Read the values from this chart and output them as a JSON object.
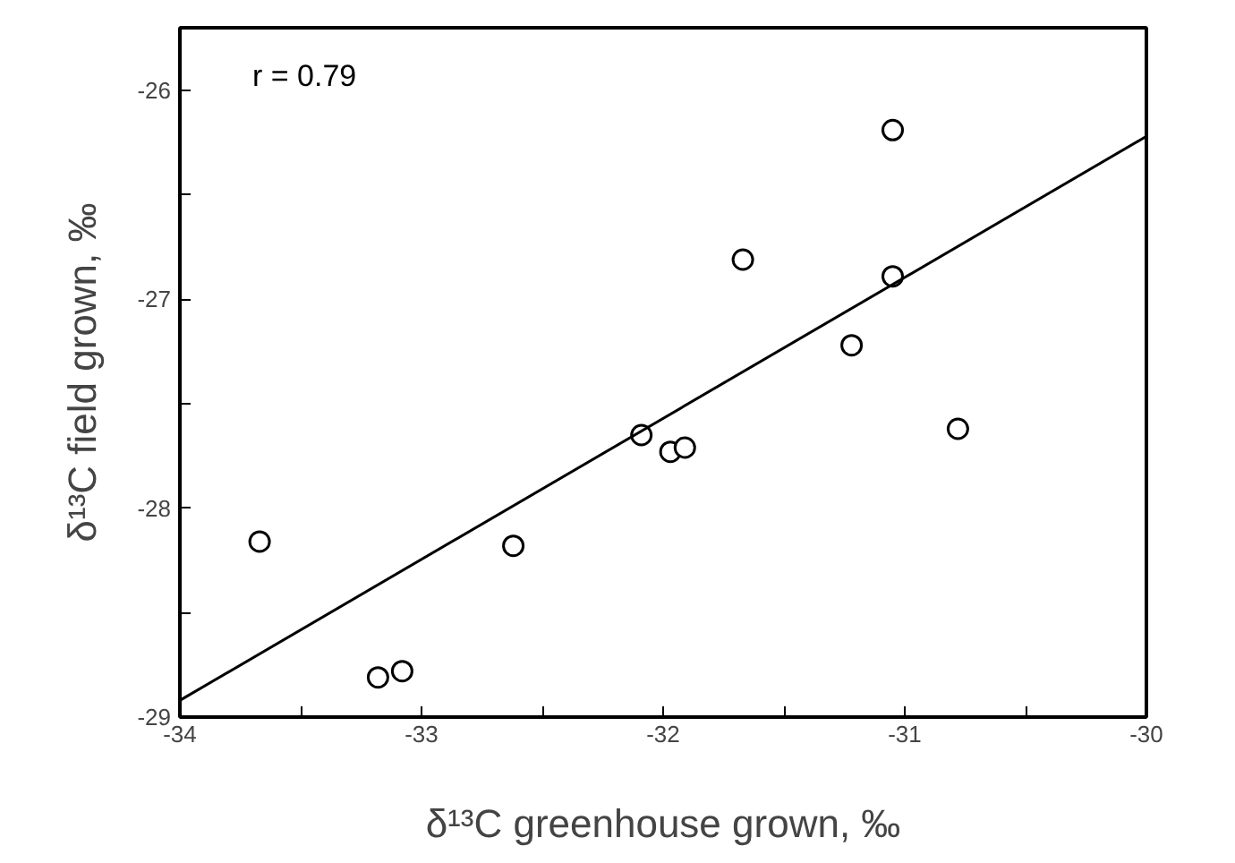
{
  "chart_data": {
    "type": "scatter",
    "xlabel": "δ¹³C greenhouse grown, ‰",
    "ylabel": "δ¹³C field grown, ‰",
    "annotations": [
      "r = 0.79"
    ],
    "xlim": [
      -34,
      -30
    ],
    "ylim": [
      -29,
      -25.7
    ],
    "xticks": [
      -34,
      {
        "value": -33.5,
        "label": null
      },
      -33,
      {
        "value": -32.5,
        "label": null
      },
      -32,
      {
        "value": -31.5,
        "label": null
      },
      -31,
      {
        "value": -30.5,
        "label": null
      },
      -30
    ],
    "yticks": [
      -29,
      {
        "value": -28.5,
        "label": null
      },
      -28,
      {
        "value": -27.5,
        "label": null
      },
      -27,
      {
        "value": -26.5,
        "label": null
      },
      -26
    ],
    "grid": false,
    "series": [
      {
        "color": "#000000",
        "marker": "circle",
        "x": [
          -33.67,
          -33.18,
          -33.08,
          -32.62,
          -32.09,
          -31.97,
          -31.91,
          -31.67,
          -31.22,
          -31.05,
          -31.05,
          -30.78
        ],
        "values": [
          -28.16,
          -28.81,
          -28.78,
          -28.18,
          -27.65,
          -27.73,
          -27.71,
          -26.81,
          -27.22,
          -26.19,
          -26.89,
          -27.62
        ]
      },
      {
        "type": "line",
        "color": "#000000",
        "line_style": "solid",
        "x": [
          -34,
          -30
        ],
        "values": [
          -28.92,
          -26.22
        ]
      }
    ]
  }
}
